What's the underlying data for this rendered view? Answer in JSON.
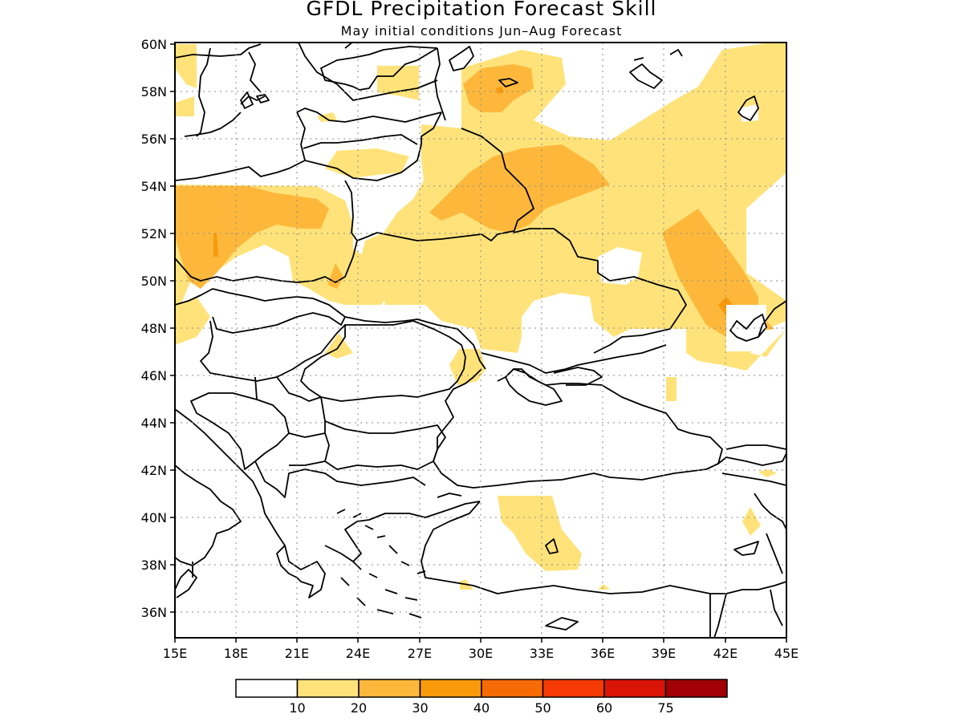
{
  "title": "GFDL Precipitation Forecast Skill",
  "subtitle": "May initial conditions  Jun–Aug Forecast",
  "map": {
    "lon_range": [
      15,
      45
    ],
    "lat_range": [
      35,
      60
    ],
    "lat_labels": [
      "60N",
      "58N",
      "56N",
      "54N",
      "52N",
      "50N",
      "48N",
      "46N",
      "44N",
      "42N",
      "40N",
      "38N",
      "36N"
    ],
    "lon_labels": [
      "15E",
      "18E",
      "21E",
      "24E",
      "27E",
      "30E",
      "33E",
      "36E",
      "39E",
      "42E",
      "45E"
    ],
    "grid": "dotted",
    "colors": {
      "skill_10_20": "#ffe37a",
      "skill_20_30": "#fdb83c",
      "skill_30_40": "#f99a0b",
      "land_outline": "#000000"
    }
  },
  "legend": {
    "labels": [
      "10",
      "20",
      "30",
      "40",
      "50",
      "60",
      "75"
    ],
    "colors": [
      "#ffffff",
      "#ffe37a",
      "#fdb83c",
      "#f99a0b",
      "#f76b06",
      "#f53a05",
      "#db1408",
      "#a10004"
    ]
  }
}
